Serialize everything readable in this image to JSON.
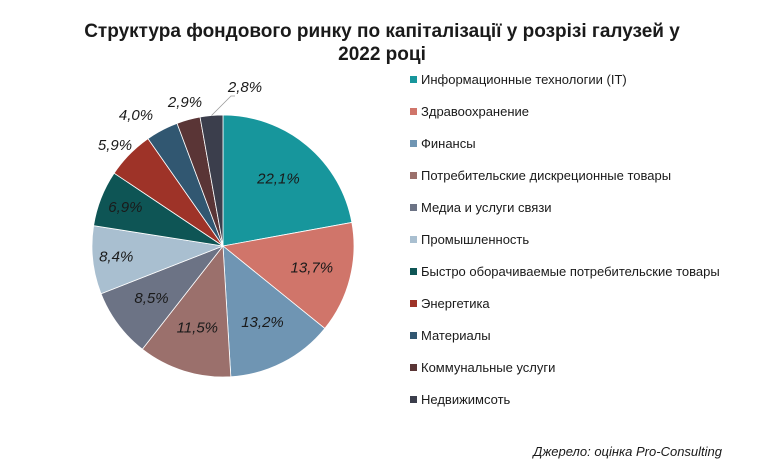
{
  "title_lines": [
    "Структура фондового ринку по капіталізації у розрізі галузей у",
    "2022 році"
  ],
  "source": "Джерело: оцінка Pro-Consulting",
  "chart_data": {
    "type": "pie",
    "title": "Структура фондового ринку по капіталізації у розрізі галузей у 2022 році",
    "legend_position": "right",
    "slices": [
      {
        "name": "Информационные технологии (IT)",
        "value": 22.1,
        "label": "22,1%",
        "color": "#17969c"
      },
      {
        "name": "Здравоохранение",
        "value": 13.7,
        "label": "13,7%",
        "color": "#d0756a"
      },
      {
        "name": "Финансы",
        "value": 13.2,
        "label": "13,2%",
        "color": "#6f95b3"
      },
      {
        "name": "Потребительские дискреционные товары",
        "value": 11.5,
        "label": "11,5%",
        "color": "#9b706c"
      },
      {
        "name": "Медиа и услуги связи",
        "value": 8.5,
        "label": "8,5%",
        "color": "#6c7385"
      },
      {
        "name": "Промышленность",
        "value": 8.4,
        "label": "8,4%",
        "color": "#a9bfd0"
      },
      {
        "name": "Быстро оборачиваемые потребительские товары",
        "value": 6.9,
        "label": "6,9%",
        "color": "#0e5555"
      },
      {
        "name": "Энергетика",
        "value": 5.9,
        "label": "5,9%",
        "color": "#9e3328"
      },
      {
        "name": "Материалы",
        "value": 4.0,
        "label": "4,0%",
        "color": "#315771"
      },
      {
        "name": "Коммунальные услуги",
        "value": 2.9,
        "label": "2,9%",
        "color": "#5a3536"
      },
      {
        "name": "Недвижимсоть",
        "value": 2.8,
        "label": "2,8%",
        "color": "#3b3e4c"
      }
    ]
  }
}
